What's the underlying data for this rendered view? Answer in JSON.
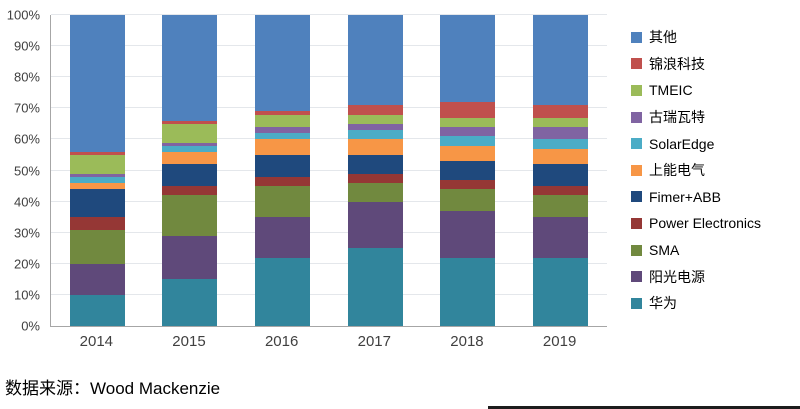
{
  "meta": {
    "source_note": "数据来源：Wood Mackenzie"
  },
  "chart_data": {
    "type": "bar",
    "stacked": true,
    "percent": true,
    "title": "",
    "xlabel": "",
    "ylabel": "",
    "ylim": [
      0,
      100
    ],
    "grid": true,
    "legend_position": "right",
    "categories": [
      "2014",
      "2015",
      "2016",
      "2017",
      "2018",
      "2019"
    ],
    "y_ticks": [
      "0%",
      "10%",
      "20%",
      "30%",
      "40%",
      "50%",
      "60%",
      "70%",
      "80%",
      "90%",
      "100%"
    ],
    "stack_order": "bottom-to-top",
    "series": [
      {
        "name": "华为",
        "color": "#31859C",
        "values": [
          10,
          15,
          22,
          25,
          22,
          22
        ]
      },
      {
        "name": "阳光电源",
        "color": "#5F497A",
        "values": [
          10,
          14,
          13,
          15,
          15,
          13
        ]
      },
      {
        "name": "SMA",
        "color": "#71893F",
        "values": [
          11,
          13,
          10,
          6,
          7,
          7
        ]
      },
      {
        "name": "Power Electronics",
        "color": "#953735",
        "values": [
          4,
          3,
          3,
          3,
          3,
          3
        ]
      },
      {
        "name": "Fimer+ABB",
        "color": "#1F497D",
        "values": [
          9,
          7,
          7,
          6,
          6,
          7
        ]
      },
      {
        "name": "上能电气",
        "color": "#F79646",
        "values": [
          2,
          4,
          5,
          5,
          5,
          5
        ]
      },
      {
        "name": "SolarEdge",
        "color": "#4BACC6",
        "values": [
          2,
          2,
          2,
          3,
          3,
          3
        ]
      },
      {
        "name": "古瑞瓦特",
        "color": "#8064A2",
        "values": [
          1,
          1,
          2,
          2,
          3,
          4
        ]
      },
      {
        "name": "TMEIC",
        "color": "#9BBB59",
        "values": [
          6,
          6,
          4,
          3,
          3,
          3
        ]
      },
      {
        "name": "锦浪科技",
        "color": "#C0504D",
        "values": [
          1,
          1,
          1,
          3,
          5,
          4
        ]
      },
      {
        "name": "其他",
        "color": "#4F81BD",
        "values": [
          44,
          34,
          31,
          29,
          28,
          29
        ]
      }
    ],
    "legend_order": [
      "其他",
      "锦浪科技",
      "TMEIC",
      "古瑞瓦特",
      "SolarEdge",
      "上能电气",
      "Fimer+ABB",
      "Power Electronics",
      "SMA",
      "阳光电源",
      "华为"
    ]
  }
}
